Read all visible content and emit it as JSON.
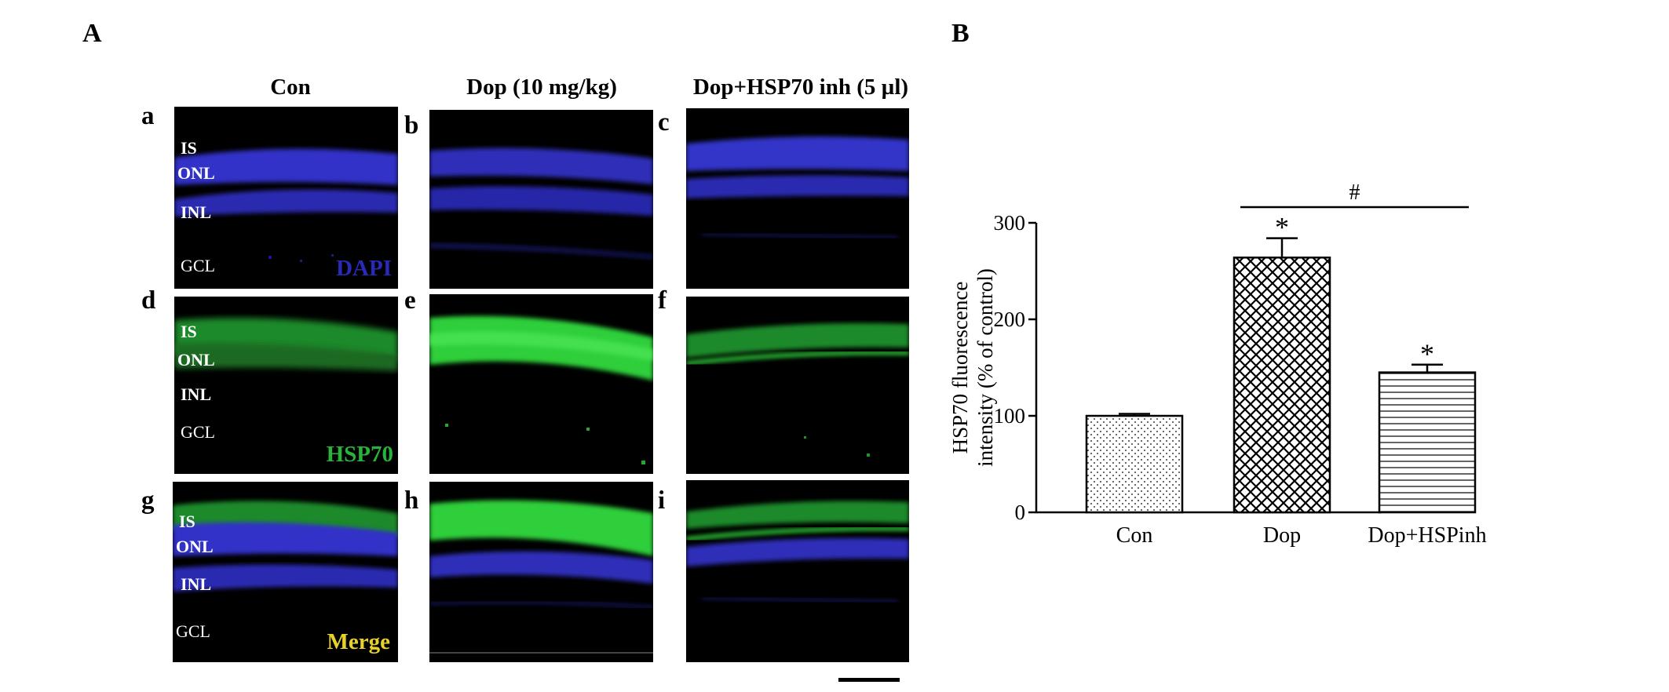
{
  "figure": {
    "panel_a_label": "A",
    "panel_b_label": "B"
  },
  "columns": [
    {
      "title": "Con"
    },
    {
      "title": "Dop (10 mg/kg)"
    },
    {
      "title": "Dop+HSP70 inh (5 µl)"
    }
  ],
  "sub_panels": [
    {
      "letter": "a",
      "layers": [
        "IS",
        "ONL",
        "INL",
        "GCL"
      ],
      "stain": "DAPI"
    },
    {
      "letter": "b"
    },
    {
      "letter": "c"
    },
    {
      "letter": "d",
      "layers": [
        "IS",
        "ONL",
        "INL",
        "GCL"
      ],
      "stain": "HSP70"
    },
    {
      "letter": "e"
    },
    {
      "letter": "f"
    },
    {
      "letter": "g",
      "layers": [
        "IS",
        "ONL",
        "INL",
        "GCL"
      ],
      "stain": "Merge"
    },
    {
      "letter": "h"
    },
    {
      "letter": "i"
    }
  ],
  "colors": {
    "dapi": "#2a2ab8",
    "hsp70": "#2fd23a",
    "merge_label": "#e8d22a",
    "dapi_label": "#2a2ab8",
    "hsp70_label": "#28b43a"
  },
  "chart_data": {
    "type": "bar",
    "categories": [
      "Con",
      "Dop",
      "Dop+HSPinh"
    ],
    "values": [
      100,
      264,
      145
    ],
    "errors": [
      2,
      20,
      8
    ],
    "patterns": [
      "dots",
      "crosshatch",
      "horizontal-lines"
    ],
    "significance": [
      "",
      "*",
      "*"
    ],
    "comparison": {
      "from": "Dop",
      "to": "Dop+HSPinh",
      "label": "#"
    },
    "ylabel_lines": [
      "HSP70 fluorescence",
      "intensity (% of control)"
    ],
    "ylim": [
      0,
      300
    ],
    "yticks": [
      0,
      100,
      200,
      300
    ]
  }
}
